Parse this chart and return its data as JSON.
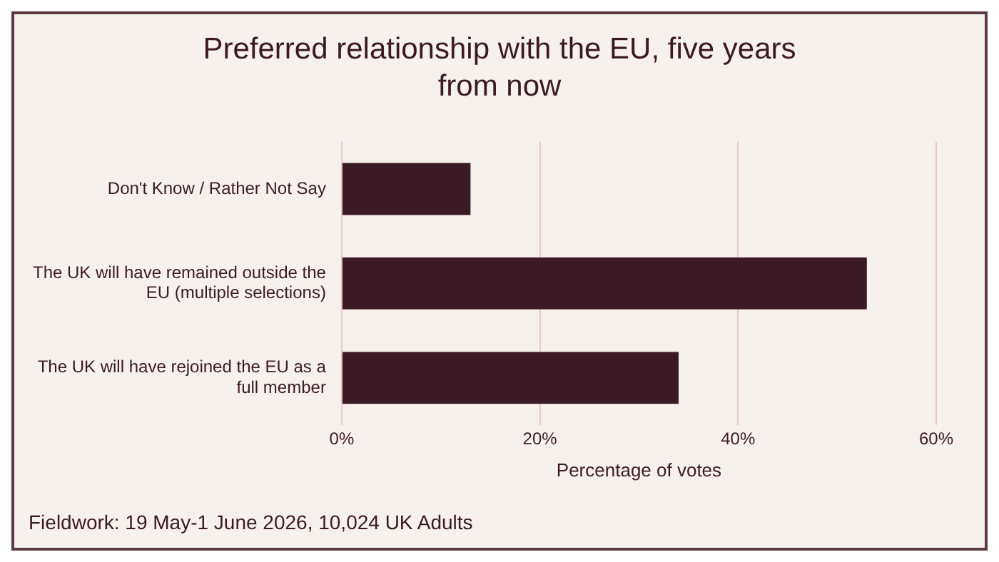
{
  "chart_data": {
    "type": "bar",
    "orientation": "horizontal",
    "title": "Preferred relationship with the EU, five years from now",
    "categories": [
      "Don't Know / Rather Not Say",
      "The UK will have remained outside the EU (multiple selections)",
      "The UK will have rejoined the EU as a full member"
    ],
    "values": [
      13,
      53,
      34
    ],
    "color": "#3a1a24",
    "xlim": [
      0,
      60
    ],
    "xticks": [
      {
        "value": 0,
        "label": "0%"
      },
      {
        "value": 20,
        "label": "20%"
      },
      {
        "value": 40,
        "label": "40%"
      },
      {
        "value": 60,
        "label": "60%"
      }
    ],
    "xlabel": "Percentage of votes",
    "grid": "x",
    "legend": false,
    "annotations": [
      "Fieldwork: 19 May-1 June 2026, 10,024 UK Adults"
    ]
  }
}
